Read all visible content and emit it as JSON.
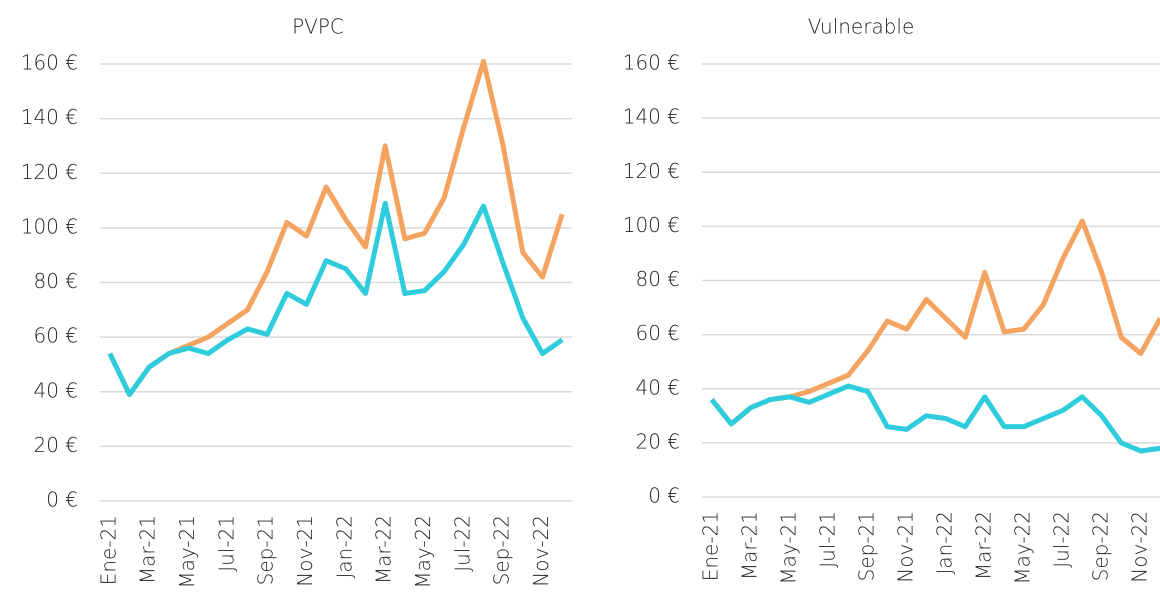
{
  "chart_data": [
    {
      "type": "line",
      "title": "PVPC",
      "categories": [
        "Ene-21",
        null,
        "Mar-21",
        null,
        "May-21",
        null,
        "Jul-21",
        null,
        "Sep-21",
        null,
        "Nov-21",
        null,
        "Jan-22",
        null,
        "Mar-22",
        null,
        "May-22",
        null,
        "Jul-22",
        null,
        "Sep-22",
        null,
        "Nov-22",
        null
      ],
      "series": [
        {
          "color": "#F4A460",
          "values": [
            54,
            39,
            49,
            54,
            57,
            60,
            65,
            70,
            84,
            102,
            97,
            115,
            103,
            93,
            130,
            96,
            98,
            111,
            137,
            161,
            130,
            91,
            82,
            105
          ]
        },
        {
          "color": "#2ECCDC",
          "values": [
            54,
            39,
            49,
            54,
            56,
            54,
            59,
            63,
            61,
            76,
            72,
            88,
            85,
            76,
            109,
            76,
            77,
            84,
            94,
            108,
            87,
            67,
            54,
            59
          ]
        }
      ],
      "ylim": [
        0,
        160
      ],
      "yticks": [
        {
          "value": 0,
          "label": "0 €"
        },
        {
          "value": 20,
          "label": "20 €"
        },
        {
          "value": 40,
          "label": "40 €"
        },
        {
          "value": 60,
          "label": "60 €"
        },
        {
          "value": 80,
          "label": "80 €"
        },
        {
          "value": 100,
          "label": "100 €"
        },
        {
          "value": 120,
          "label": "120 €"
        },
        {
          "value": 140,
          "label": "140 €"
        },
        {
          "value": 160,
          "label": "160 €"
        }
      ],
      "grid": true
    },
    {
      "type": "line",
      "title": "Vulnerable",
      "categories": [
        "Ene-21",
        null,
        "Mar-21",
        null,
        "May-21",
        null,
        "Jul-21",
        null,
        "Sep-21",
        null,
        "Nov-21",
        null,
        "Jan-22",
        null,
        "Mar-22",
        null,
        "May-22",
        null,
        "Jul-22",
        null,
        "Sep-22",
        null,
        "Nov-22",
        null
      ],
      "series": [
        {
          "color": "#F4A460",
          "values": [
            36,
            27,
            33,
            36,
            37,
            39,
            42,
            45,
            54,
            65,
            62,
            73,
            66,
            59,
            83,
            61,
            62,
            71,
            88,
            102,
            83,
            59,
            53,
            66
          ]
        },
        {
          "color": "#2ECCDC",
          "values": [
            36,
            27,
            33,
            36,
            37,
            35,
            38,
            41,
            39,
            26,
            25,
            30,
            29,
            26,
            37,
            26,
            26,
            29,
            32,
            37,
            30,
            20,
            17,
            18
          ]
        }
      ],
      "ylim": [
        0,
        160
      ],
      "yticks": [
        {
          "value": 0,
          "label": "0 €"
        },
        {
          "value": 20,
          "label": "20 €"
        },
        {
          "value": 40,
          "label": "40 €"
        },
        {
          "value": 60,
          "label": "60 €"
        },
        {
          "value": 80,
          "label": "80 €"
        },
        {
          "value": 100,
          "label": "100 €"
        },
        {
          "value": 120,
          "label": "120 €"
        },
        {
          "value": 140,
          "label": "140 €"
        },
        {
          "value": 160,
          "label": "160 €"
        }
      ],
      "grid": true
    }
  ]
}
